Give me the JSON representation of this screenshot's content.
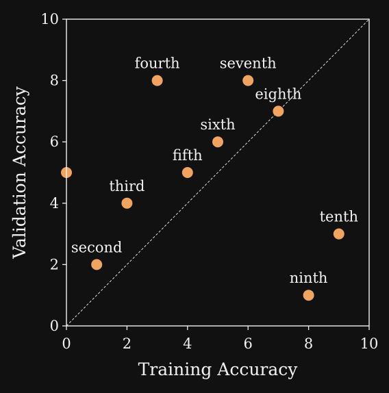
{
  "colors": {
    "background": "#111111",
    "foreground": "#f2f2f2",
    "marker": "#f0a460",
    "diagonal": "#f2f2f2"
  },
  "chart_data": {
    "type": "scatter",
    "title": "",
    "xlabel": "Training Accuracy",
    "ylabel": "Validation Accuracy",
    "xlim": [
      0,
      10
    ],
    "ylim": [
      0,
      10
    ],
    "xticks": [
      0,
      2,
      4,
      6,
      8,
      10
    ],
    "yticks": [
      0,
      2,
      4,
      6,
      8,
      10
    ],
    "grid": false,
    "reference_line": {
      "from": [
        0,
        0
      ],
      "to": [
        10,
        10
      ],
      "style": "dashed"
    },
    "points": [
      {
        "label": "",
        "x": 0,
        "y": 5
      },
      {
        "label": "second",
        "x": 1,
        "y": 2
      },
      {
        "label": "third",
        "x": 2,
        "y": 4
      },
      {
        "label": "fourth",
        "x": 3,
        "y": 8
      },
      {
        "label": "fifth",
        "x": 4,
        "y": 5
      },
      {
        "label": "sixth",
        "x": 5,
        "y": 6
      },
      {
        "label": "seventh",
        "x": 6,
        "y": 8
      },
      {
        "label": "eighth",
        "x": 7,
        "y": 7
      },
      {
        "label": "ninth",
        "x": 8,
        "y": 1
      },
      {
        "label": "tenth",
        "x": 9,
        "y": 3
      }
    ]
  }
}
